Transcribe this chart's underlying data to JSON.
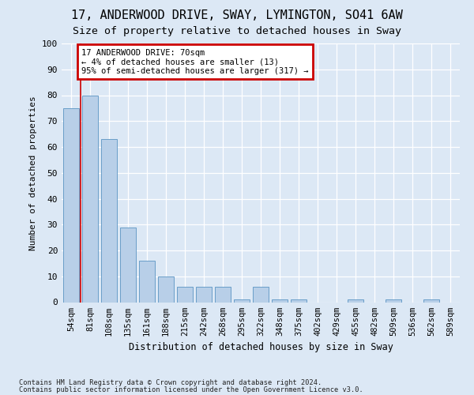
{
  "title1": "17, ANDERWOOD DRIVE, SWAY, LYMINGTON, SO41 6AW",
  "title2": "Size of property relative to detached houses in Sway",
  "xlabel": "Distribution of detached houses by size in Sway",
  "ylabel": "Number of detached properties",
  "categories": [
    "54sqm",
    "81sqm",
    "108sqm",
    "135sqm",
    "161sqm",
    "188sqm",
    "215sqm",
    "242sqm",
    "268sqm",
    "295sqm",
    "322sqm",
    "348sqm",
    "375sqm",
    "402sqm",
    "429sqm",
    "455sqm",
    "482sqm",
    "509sqm",
    "536sqm",
    "562sqm",
    "589sqm"
  ],
  "values": [
    75,
    80,
    63,
    29,
    16,
    10,
    6,
    6,
    6,
    1,
    6,
    1,
    1,
    0,
    0,
    1,
    0,
    1,
    0,
    1,
    0
  ],
  "bar_color": "#b8cfe8",
  "bar_edge_color": "#6a9ec8",
  "annotation_box_color": "#ffffff",
  "annotation_box_edge": "#cc0000",
  "annotation_lines": [
    "17 ANDERWOOD DRIVE: 70sqm",
    "← 4% of detached houses are smaller (13)",
    "95% of semi-detached houses are larger (317) →"
  ],
  "ylim": [
    0,
    100
  ],
  "yticks": [
    0,
    10,
    20,
    30,
    40,
    50,
    60,
    70,
    80,
    90,
    100
  ],
  "footnote1": "Contains HM Land Registry data © Crown copyright and database right 2024.",
  "footnote2": "Contains public sector information licensed under the Open Government Licence v3.0.",
  "fig_bg_color": "#dce8f5",
  "plot_bg_color": "#dce8f5",
  "title1_fontsize": 11,
  "title2_fontsize": 9.5,
  "grid_color": "#ffffff"
}
